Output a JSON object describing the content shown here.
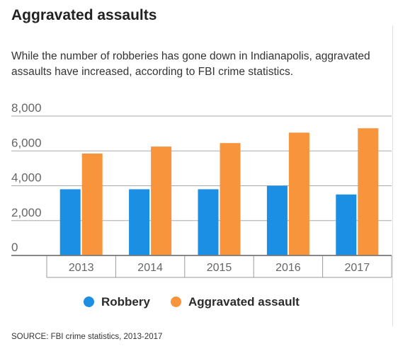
{
  "header": {
    "title": "Aggravated assaults",
    "subtitle": "While the number of robberies has gone down in Indianapolis, aggravated assaults have increased, according to FBI crime statistics."
  },
  "chart_data": {
    "type": "bar",
    "categories": [
      "2013",
      "2014",
      "2015",
      "2016",
      "2017"
    ],
    "series": [
      {
        "name": "Robbery",
        "color": "#1a8fe3",
        "values": [
          3800,
          3800,
          3800,
          4000,
          3500
        ]
      },
      {
        "name": "Aggravated assault",
        "color": "#f7943c",
        "values": [
          5850,
          6250,
          6450,
          7050,
          7300
        ]
      }
    ],
    "yticks": [
      "8,000",
      "6,000",
      "4,000",
      "2,000",
      "0"
    ],
    "ylim": [
      0,
      8000
    ],
    "grid": true,
    "legend_position": "bottom"
  },
  "footer": {
    "source": "SOURCE: FBI crime statistics, 2013-2017"
  }
}
